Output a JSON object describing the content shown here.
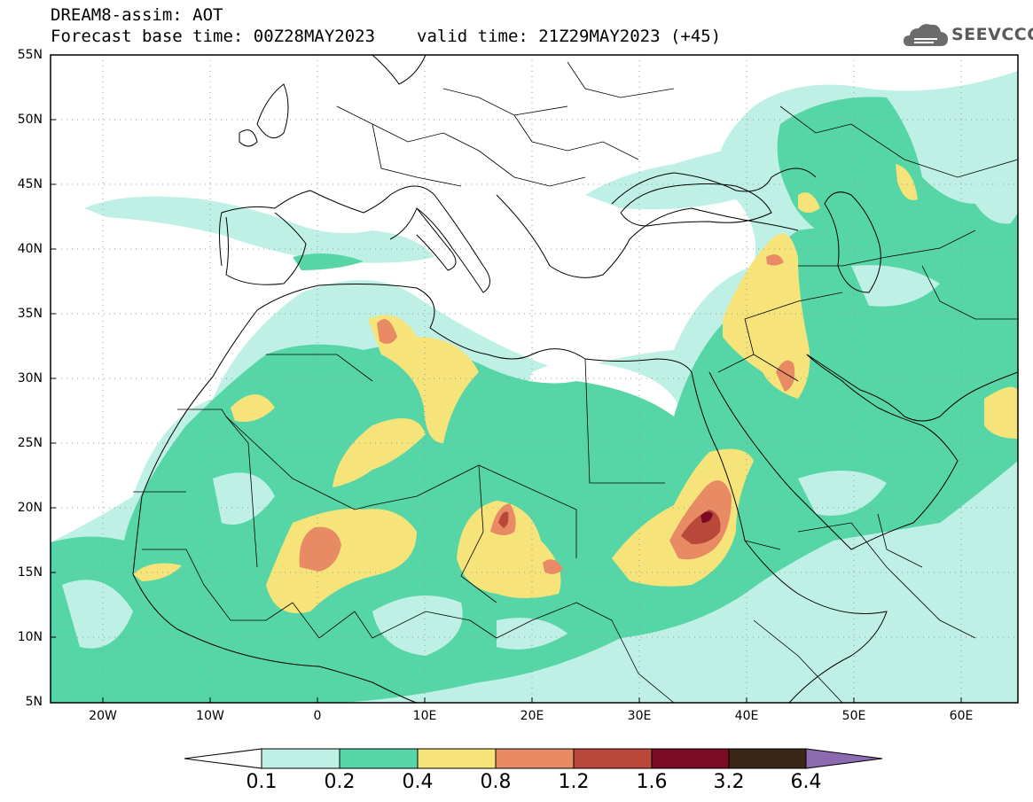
{
  "header": {
    "title": "DREAM8-assim: AOT",
    "base_time": "Forecast base time: 00Z28MAY2023",
    "valid_time": "valid time: 21Z29MAY2023 (+45)"
  },
  "logo": {
    "text": "SEEVCCC",
    "icon": "cloud-logo-icon"
  },
  "map": {
    "lat_labels": [
      "55N",
      "50N",
      "45N",
      "40N",
      "35N",
      "30N",
      "25N",
      "20N",
      "15N",
      "10N",
      "5N"
    ],
    "lon_labels": [
      "20W",
      "10W",
      "0",
      "10E",
      "20E",
      "30E",
      "40E",
      "50E",
      "60E"
    ],
    "grid_lines": "dotted"
  },
  "colorbar": {
    "labels": [
      "0.1",
      "0.2",
      "0.4",
      "0.8",
      "1.2",
      "1.6",
      "3.2",
      "6.4"
    ],
    "colors": [
      "#ffffff",
      "#bff0e6",
      "#56d6a6",
      "#f6e47a",
      "#e88b64",
      "#b9473a",
      "#7d0a24",
      "#3a2616",
      "#8e6bb0"
    ]
  }
}
